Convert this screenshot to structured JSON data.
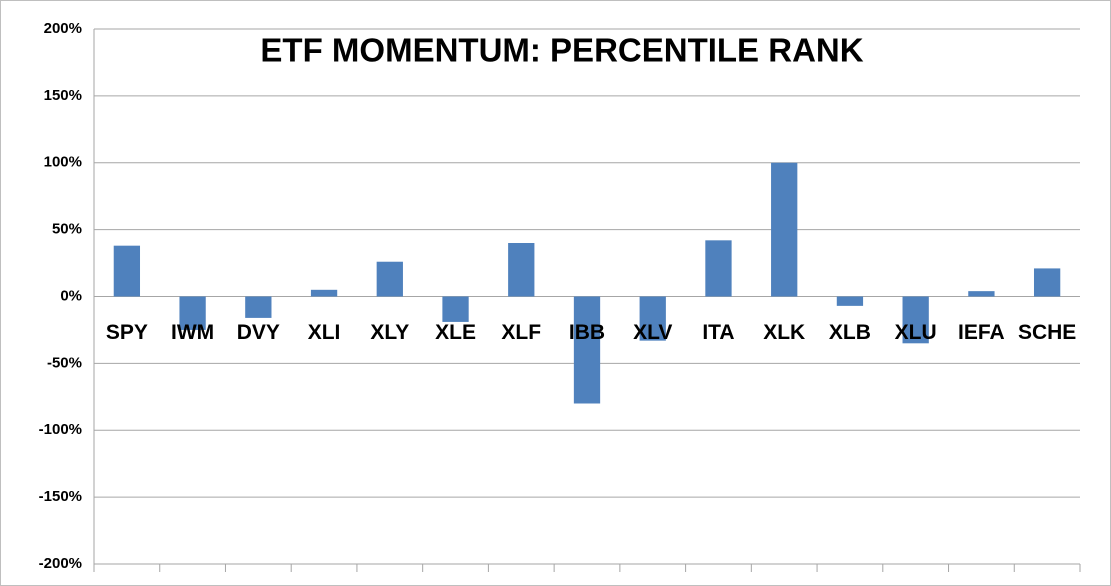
{
  "chart_data": {
    "type": "bar",
    "title": "ETF MOMENTUM: PERCENTILE RANK",
    "categories": [
      "SPY",
      "IWM",
      "DVY",
      "XLI",
      "XLY",
      "XLE",
      "XLF",
      "IBB",
      "XLV",
      "ITA",
      "XLK",
      "XLB",
      "XLU",
      "IEFA",
      "SCHE"
    ],
    "values": [
      38,
      -25,
      -16,
      5,
      26,
      -19,
      40,
      -80,
      -33,
      42,
      100,
      -7,
      -35,
      4,
      21
    ],
    "color": "#4f81bd",
    "ylim": [
      -200,
      200
    ],
    "yticks": [
      {
        "value": -200,
        "label": "-200%"
      },
      {
        "value": -150,
        "label": "-150%"
      },
      {
        "value": -100,
        "label": "-100%"
      },
      {
        "value": -50,
        "label": "-50%"
      },
      {
        "value": 0,
        "label": "0%"
      },
      {
        "value": 50,
        "label": "50%"
      },
      {
        "value": 100,
        "label": "100%"
      },
      {
        "value": 150,
        "label": "150%"
      },
      {
        "value": 200,
        "label": "200%"
      }
    ],
    "grid": true
  }
}
